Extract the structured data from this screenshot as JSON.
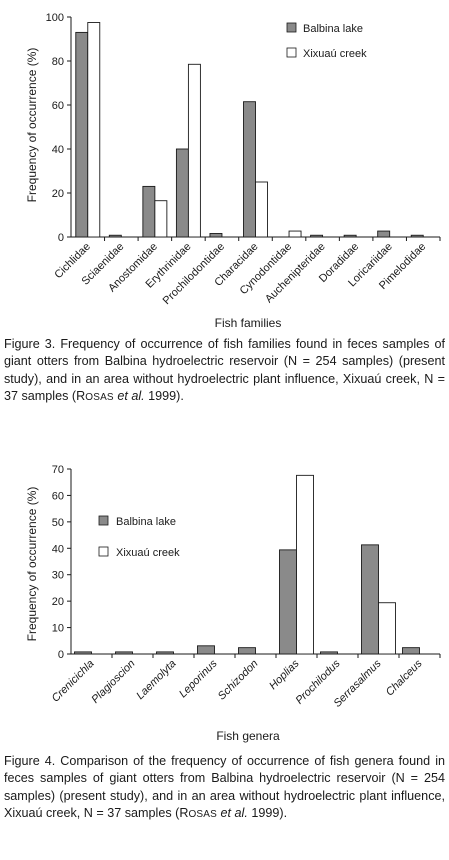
{
  "figure3": {
    "caption": {
      "label": "Figure 3.",
      "text_before_rosas": " Frequency of occurrence of fish families found in feces samples of giant otters from Balbina hydroelectric reservoir (N = 254 samples) (present study), and in an area without hydroelectric plant influence, Xixuaú creek, N = 37 samples (",
      "rosas_initial": "R",
      "rosas_rest": "OSAS",
      "et_al": "et al.",
      "year": " 1999)."
    }
  },
  "figure4": {
    "caption": {
      "label": "Figure 4.",
      "text_before_rosas": " Comparison of the frequency of occurrence of fish genera found in feces samples of giant otters from Balbina hydroelectric reservoir (N = 254 samples) (present study), and in an area without hydroelectric plant influence, Xixuaú creek, N = 37 samples (",
      "rosas_initial": "R",
      "rosas_rest": "OSAS",
      "et_al": "et al.",
      "year": " 1999)."
    }
  },
  "colors": {
    "balbina": "#8a8a8a",
    "xixuau": "#ffffff",
    "stroke": "#1a1a1a"
  },
  "chart_data": [
    {
      "type": "bar",
      "xlabel": "Fish families",
      "ylabel": "Frequency of occurrence (%)",
      "ylim": [
        0,
        100
      ],
      "yticks": [
        "0",
        "20",
        "40",
        "60",
        "80",
        "100"
      ],
      "legend_position": "top-right",
      "categories": [
        "Cichlidae",
        "Sciaenidae",
        "Anostomidae",
        "Erythrinidae",
        "Prochilodontidae",
        "Characidae",
        "Cynodontidae",
        "Auchenipteridae",
        "Doradidae",
        "Loricariidae",
        "Pimelodidae"
      ],
      "series": [
        {
          "name": "Balbina lake",
          "values": [
            93,
            0.8,
            23,
            40,
            1.6,
            61.5,
            0,
            0.8,
            0.8,
            2.7,
            0.8
          ]
        },
        {
          "name": "Xixuaú creek",
          "values": [
            97.5,
            0,
            16.5,
            78.5,
            0,
            25,
            2.7,
            0,
            0,
            0,
            0
          ]
        }
      ]
    },
    {
      "type": "bar",
      "xlabel": "Fish genera",
      "ylabel": "Frequency of occurrence (%)",
      "ylim": [
        0,
        70
      ],
      "yticks": [
        "0",
        "10",
        "20",
        "30",
        "40",
        "50",
        "60",
        "70"
      ],
      "legend_position": "top-left",
      "categories": [
        "Crenicichla",
        "Plagioscion",
        "Laemolyta",
        "Leporinus",
        "Schizodon",
        "Hoplias",
        "Prochilodus",
        "Serrasalmus",
        "Chalceus"
      ],
      "series": [
        {
          "name": "Balbina lake",
          "values": [
            0.8,
            0.8,
            0.8,
            3.1,
            2.4,
            39.4,
            0.8,
            41.3,
            2.4
          ]
        },
        {
          "name": "Xixuaú creek",
          "values": [
            0,
            0,
            0,
            0,
            0,
            67.6,
            0,
            19.4,
            0
          ]
        }
      ]
    }
  ]
}
